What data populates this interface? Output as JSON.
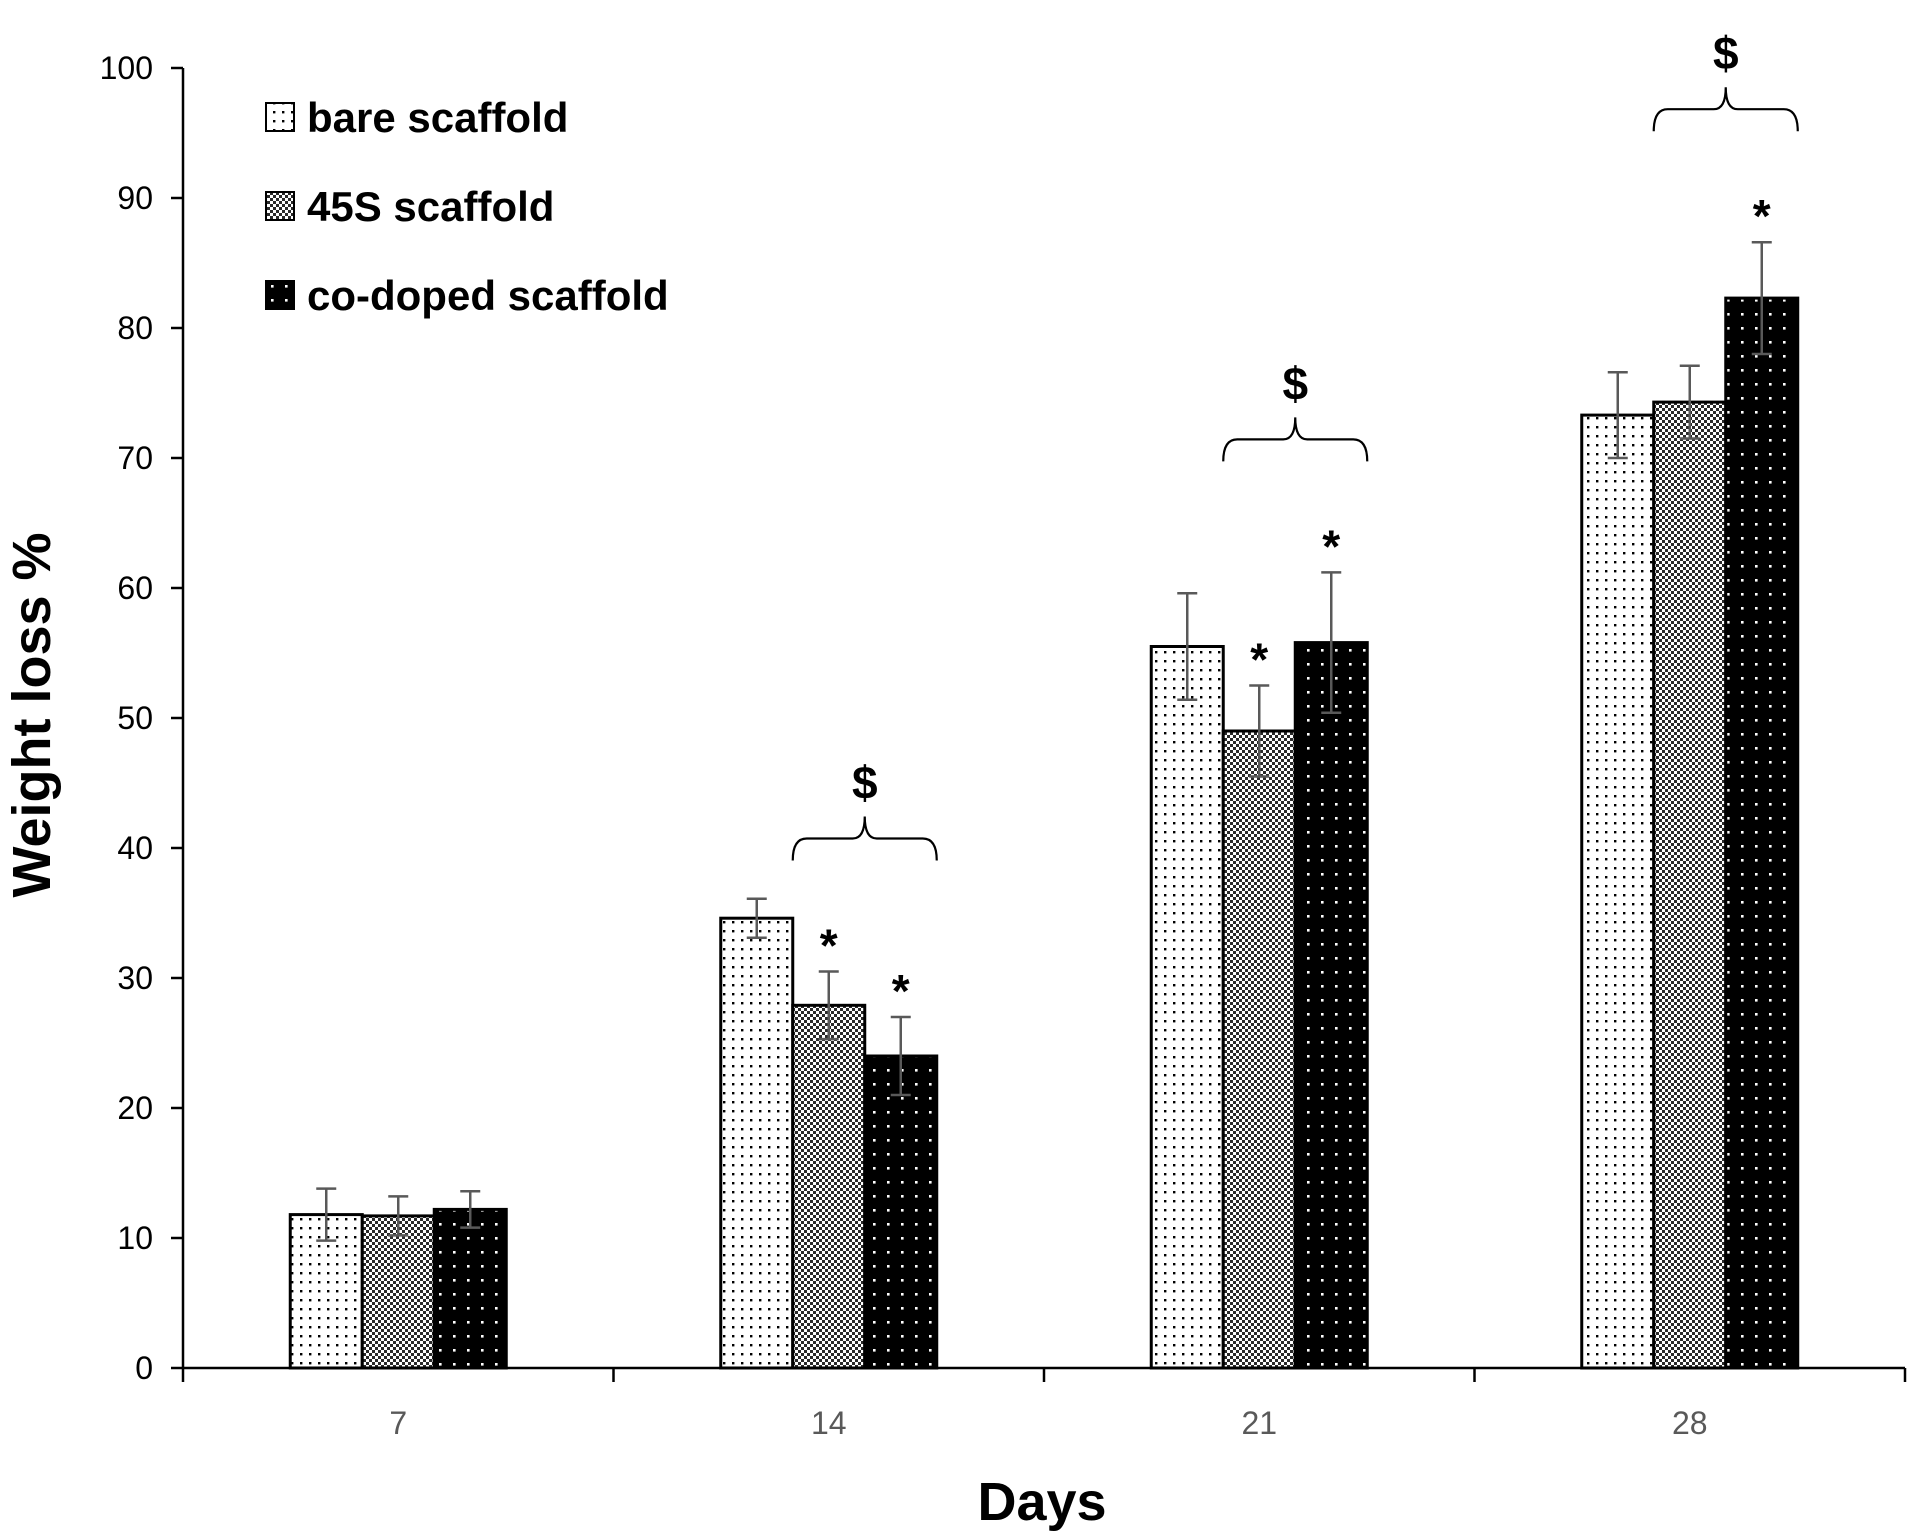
{
  "chart_data": {
    "type": "bar",
    "title": "",
    "xlabel": "Days",
    "ylabel": "Weight loss %",
    "ylim": [
      0,
      100
    ],
    "yticks": [
      "0",
      "10",
      "20",
      "30",
      "40",
      "50",
      "60",
      "70",
      "80",
      "90",
      "100"
    ],
    "categories": [
      "7",
      "14",
      "21",
      "28"
    ],
    "legend_position": "top-left",
    "grid": false,
    "series": [
      {
        "name": "bare scaffold",
        "pattern": "dots-sparse",
        "values": [
          11.8,
          34.6,
          55.5,
          73.3
        ],
        "errors": [
          2.0,
          1.5,
          4.1,
          3.3
        ]
      },
      {
        "name": "45S scaffold",
        "pattern": "crosshatch",
        "values": [
          11.7,
          27.9,
          49.0,
          74.3
        ],
        "errors": [
          1.5,
          2.6,
          3.5,
          2.8
        ]
      },
      {
        "name": "co-doped scaffold",
        "pattern": "dots-on-black",
        "values": [
          12.2,
          24.0,
          55.8,
          82.3
        ],
        "errors": [
          1.4,
          3.0,
          5.4,
          4.3
        ]
      }
    ],
    "annotations": {
      "stars": [
        {
          "category": "14",
          "series": 1,
          "text": "*"
        },
        {
          "category": "14",
          "series": 2,
          "text": "*"
        },
        {
          "category": "21",
          "series": 1,
          "text": "*"
        },
        {
          "category": "21",
          "series": 2,
          "text": "*"
        },
        {
          "category": "28",
          "series": 2,
          "text": "*"
        }
      ],
      "brackets": [
        {
          "category": "14",
          "text": "$"
        },
        {
          "category": "21",
          "text": "$"
        },
        {
          "category": "28",
          "text": "$"
        }
      ]
    }
  },
  "colors": {
    "bar_outline": "#000000",
    "error_bar": "#595959",
    "axis": "#000000"
  }
}
